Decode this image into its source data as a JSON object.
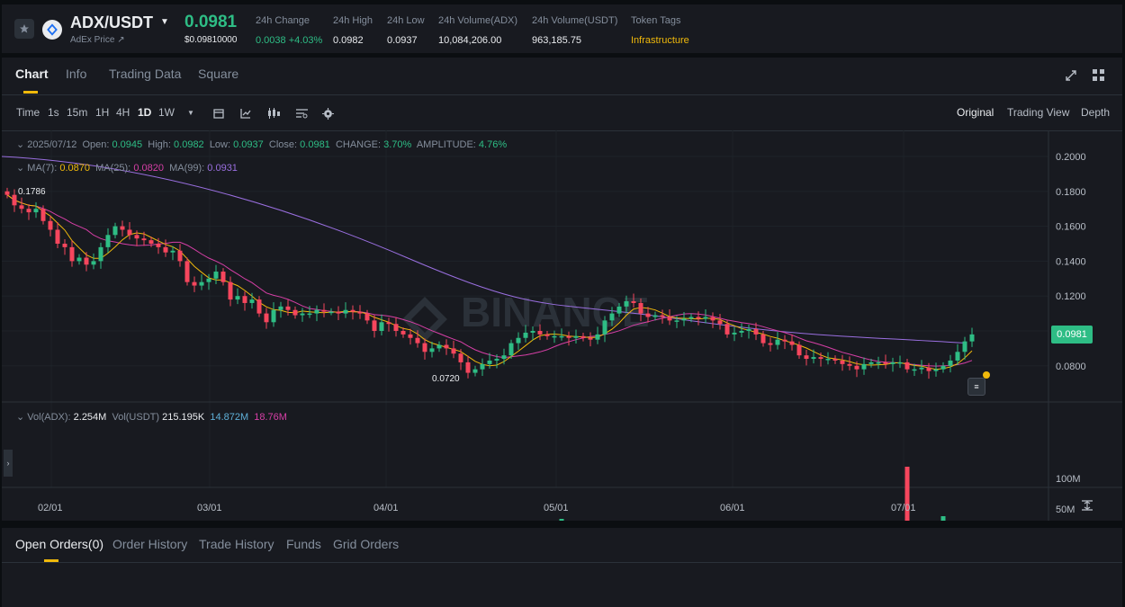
{
  "header": {
    "star_icon": "star-icon",
    "coin_icon": "adex-coin-icon",
    "pair": "ADX/USDT",
    "coin_name": "AdEx Price ↗",
    "price": "0.0981",
    "price_usd": "$0.09810000",
    "stats": [
      {
        "label": "24h Change",
        "value": "0.0038 +4.03%",
        "color": "green"
      },
      {
        "label": "24h High",
        "value": "0.0982",
        "color": "white"
      },
      {
        "label": "24h Low",
        "value": "0.0937",
        "color": "white"
      },
      {
        "label": "24h Volume(ADX)",
        "value": "10,084,206.00",
        "color": "white"
      },
      {
        "label": "24h Volume(USDT)",
        "value": "963,185.75",
        "color": "white"
      },
      {
        "label": "Token Tags",
        "value": "Infrastructure",
        "color": "yellow"
      }
    ]
  },
  "tabs": [
    "Chart",
    "Info",
    "Trading Data",
    "Square"
  ],
  "toolbar": {
    "intervals": [
      "Time",
      "1s",
      "15m",
      "1H",
      "4H",
      "1D",
      "1W"
    ],
    "active_interval": "1D",
    "views": [
      "Original",
      "Trading View",
      "Depth"
    ],
    "active_view": "Original"
  },
  "ohlc": {
    "date": "2025/07/12",
    "open_label": "Open:",
    "open": "0.0945",
    "high_label": "High:",
    "high": "0.0982",
    "low_label": "Low:",
    "low": "0.0937",
    "close_label": "Close:",
    "close": "0.0981",
    "change_label": "CHANGE:",
    "change": "3.70%",
    "amplitude_label": "AMPLITUDE:",
    "amplitude": "4.76%"
  },
  "ma": {
    "ma7_label": "MA(7):",
    "ma7": "0.0870",
    "ma25_label": "MA(25):",
    "ma25": "0.0820",
    "ma99_label": "MA(99):",
    "ma99": "0.0931"
  },
  "volume_legend": {
    "adx_label": "Vol(ADX):",
    "adx": "2.254M",
    "usdt_label": "Vol(USDT)",
    "usdt": "215.195K",
    "ma1": "14.872M",
    "ma2": "18.76M"
  },
  "price_axis": [
    "0.2000",
    "0.1800",
    "0.1600",
    "0.1400",
    "0.1200",
    "0.0800"
  ],
  "volume_axis": [
    "100M",
    "50M"
  ],
  "date_axis": [
    "02/01",
    "03/01",
    "04/01",
    "05/01",
    "06/01",
    "07/01"
  ],
  "current_price_tag": "0.0981",
  "high_marker": "0.1786",
  "low_marker": "0.0720",
  "watermark": "BINANCE",
  "colors": {
    "up": "#2ebd85",
    "down": "#f6465d",
    "ma7": "#f0b90b",
    "ma25": "#d63fa6",
    "ma99": "#9a6fe0",
    "accent": "#f0b90b"
  },
  "orders_tabs": [
    "Open Orders(0)",
    "Order History",
    "Trade History",
    "Funds",
    "Grid Orders"
  ]
}
